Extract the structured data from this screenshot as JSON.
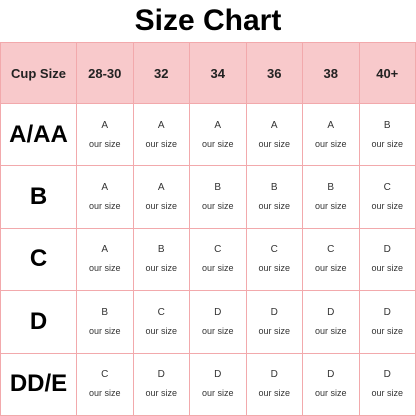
{
  "title": "Size Chart",
  "header": {
    "corner": "Cup Size",
    "bands": [
      "28-30",
      "32",
      "34",
      "36",
      "38",
      "40+"
    ]
  },
  "note": "our size",
  "rows": [
    {
      "cup": "A/AA",
      "sizes": [
        "A",
        "A",
        "A",
        "A",
        "A",
        "B"
      ]
    },
    {
      "cup": "B",
      "sizes": [
        "A",
        "A",
        "B",
        "B",
        "B",
        "C"
      ]
    },
    {
      "cup": "C",
      "sizes": [
        "A",
        "B",
        "C",
        "C",
        "C",
        "D"
      ]
    },
    {
      "cup": "D",
      "sizes": [
        "B",
        "C",
        "D",
        "D",
        "D",
        "D"
      ]
    },
    {
      "cup": "DD/E",
      "sizes": [
        "C",
        "D",
        "D",
        "D",
        "D",
        "D"
      ]
    }
  ],
  "colors": {
    "header_bg": "#f8c9cb",
    "grid": "#f2a9ac"
  }
}
